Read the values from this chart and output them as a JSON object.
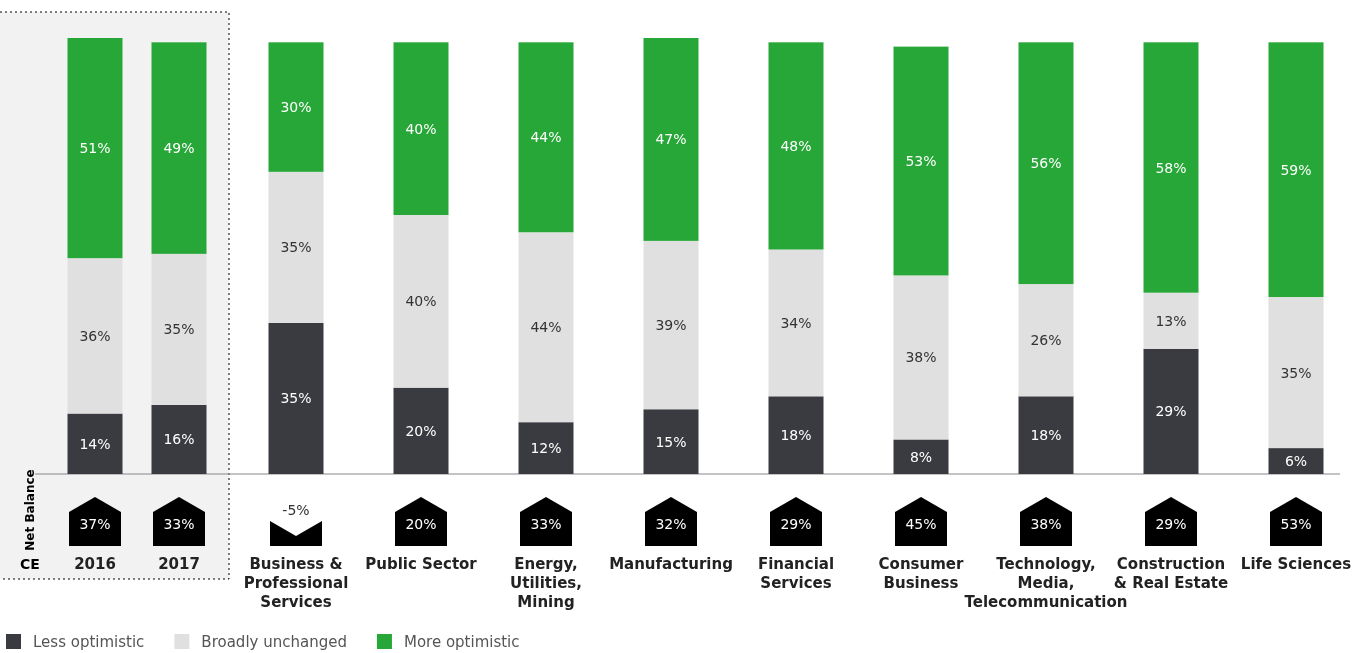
{
  "chart_data": {
    "type": "bar",
    "stacked": true,
    "legend": "bottom left",
    "bands": [
      {
        "axis": "x",
        "from": "2016",
        "to": "2017",
        "color": "#f2f2f2"
      }
    ],
    "categories": [
      "2016",
      "2017",
      "Business & Professional Services",
      "Public Sector",
      "Energy, Utilities, Mining",
      "Manufacturing",
      "Financial Services",
      "Consumer Business",
      "Technology, Media, Telecommunication",
      "Construction & Real Estate",
      "Life Sciences"
    ],
    "series": [
      {
        "name": "Less optimistic",
        "color": "#3a3b40",
        "values": [
          14,
          16,
          35,
          20,
          12,
          15,
          18,
          8,
          18,
          29,
          6
        ],
        "value_labels": [
          "14%",
          "16%",
          "35%",
          "20%",
          "12%",
          "15%",
          "18%",
          "8%",
          "18%",
          "29%",
          "6%"
        ]
      },
      {
        "name": "Broadly unchanged",
        "color": "#e0e0e0",
        "values": [
          36,
          35,
          35,
          40,
          44,
          39,
          34,
          38,
          26,
          13,
          35
        ],
        "value_labels": [
          "36%",
          "35%",
          "35%",
          "40%",
          "44%",
          "39%",
          "34%",
          "38%",
          "26%",
          "13%",
          "35%"
        ]
      },
      {
        "name": "More optimistic",
        "color": "#26a737",
        "values": [
          51,
          49,
          30,
          40,
          44,
          47,
          48,
          53,
          56,
          58,
          59
        ],
        "value_labels": [
          "51%",
          "49%",
          "30%",
          "40%",
          "44%",
          "47%",
          "48%",
          "53%",
          "56%",
          "58%",
          "59%"
        ]
      }
    ],
    "annotations": [
      "Net Balance",
      "CE",
      "37%",
      "33%",
      "-5%",
      "20%",
      "33%",
      "32%",
      "29%",
      "45%",
      "38%",
      "29%",
      "53%"
    ]
  }
}
